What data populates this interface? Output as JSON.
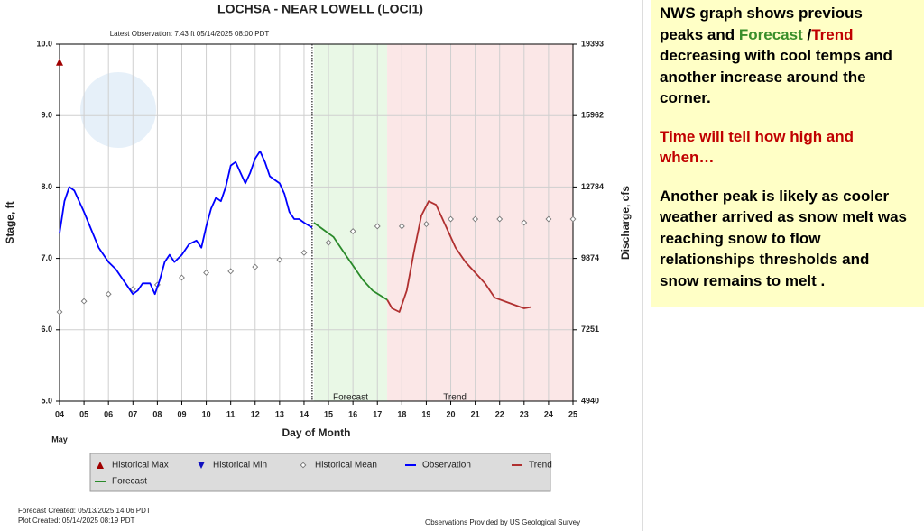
{
  "chart_data": {
    "type": "line",
    "title": "LOCHSA - NEAR LOWELL  (LOCI1)",
    "subtitle": "Latest Observation: 7.43 ft 05/14/2025 08:00 PDT",
    "x_label": "Day of Month",
    "x_sublabel": "May",
    "y_label": "Stage, ft",
    "y2_label": "Discharge, cfs",
    "xlim": [
      4,
      25
    ],
    "xticks": [
      {
        "value": 4,
        "label": "04"
      },
      {
        "value": 5,
        "label": "05"
      },
      {
        "value": 6,
        "label": "06"
      },
      {
        "value": 7,
        "label": "07"
      },
      {
        "value": 8,
        "label": "08"
      },
      {
        "value": 9,
        "label": "09"
      },
      10,
      11,
      12,
      13,
      14,
      15,
      16,
      17,
      18,
      19,
      20,
      21,
      22,
      23,
      24,
      25
    ],
    "ylim": [
      5,
      10
    ],
    "yticks": [
      {
        "value": 5,
        "label": "5.0"
      },
      {
        "value": 6,
        "label": "6.0"
      },
      {
        "value": 7,
        "label": "7.0"
      },
      {
        "value": 8,
        "label": "8.0"
      },
      {
        "value": 9,
        "label": "9.0"
      },
      {
        "value": 10,
        "label": "10.0"
      }
    ],
    "y2lim": [
      4940,
      19393
    ],
    "y2ticks": [
      4940,
      7251,
      9874,
      12784,
      15962,
      19393
    ],
    "grid": true,
    "series": [
      {
        "name": "Historical Max",
        "color": "#a00000",
        "marker": "triangle-up",
        "x": [
          4
        ],
        "values": [
          9.75
        ]
      },
      {
        "name": "Historical Min",
        "color": "#1010c0",
        "marker": "triangle-down",
        "x": [],
        "values": []
      },
      {
        "name": "Historical Mean",
        "color": "#777777",
        "marker": "diamond",
        "x": [
          4,
          5,
          6,
          7,
          8,
          9,
          10,
          11,
          12,
          13,
          14,
          15,
          16,
          17,
          18,
          19,
          20,
          21,
          22,
          23,
          24,
          25
        ],
        "values": [
          6.25,
          6.4,
          6.5,
          6.57,
          6.63,
          6.73,
          6.8,
          6.82,
          6.88,
          6.98,
          7.08,
          7.22,
          7.38,
          7.45,
          7.45,
          7.48,
          7.55,
          7.55,
          7.55,
          7.5,
          7.55,
          7.55
        ]
      },
      {
        "name": "Observation",
        "color": "#0000ff",
        "marker": "line",
        "x": [
          4.0,
          4.2,
          4.4,
          4.6,
          4.8,
          5.0,
          5.3,
          5.6,
          6.0,
          6.3,
          6.6,
          6.8,
          7.0,
          7.2,
          7.4,
          7.7,
          7.9,
          8.1,
          8.3,
          8.5,
          8.7,
          9.0,
          9.3,
          9.6,
          9.8,
          10.0,
          10.2,
          10.4,
          10.6,
          10.8,
          11.0,
          11.2,
          11.4,
          11.6,
          11.8,
          12.0,
          12.2,
          12.4,
          12.6,
          12.8,
          13.0,
          13.2,
          13.4,
          13.6,
          13.8,
          14.0,
          14.33
        ],
        "values": [
          7.35,
          7.8,
          8.0,
          7.95,
          7.8,
          7.65,
          7.4,
          7.15,
          6.95,
          6.85,
          6.7,
          6.6,
          6.5,
          6.55,
          6.65,
          6.65,
          6.5,
          6.7,
          6.95,
          7.05,
          6.95,
          7.05,
          7.2,
          7.25,
          7.15,
          7.45,
          7.7,
          7.85,
          7.8,
          8.0,
          8.3,
          8.35,
          8.2,
          8.05,
          8.2,
          8.4,
          8.5,
          8.35,
          8.15,
          8.1,
          8.05,
          7.9,
          7.65,
          7.55,
          7.55,
          7.5,
          7.43
        ]
      },
      {
        "name": "Trend",
        "color": "#b03030",
        "marker": "line",
        "x": [
          17.4,
          17.6,
          17.9,
          18.2,
          18.5,
          18.8,
          19.1,
          19.4,
          19.8,
          20.2,
          20.6,
          21.0,
          21.4,
          21.8,
          22.2,
          22.6,
          23.0,
          23.3
        ],
        "values": [
          6.42,
          6.3,
          6.25,
          6.55,
          7.1,
          7.6,
          7.8,
          7.75,
          7.45,
          7.15,
          6.95,
          6.8,
          6.65,
          6.45,
          6.4,
          6.35,
          6.3,
          6.32
        ]
      },
      {
        "name": "Forecast",
        "color": "#2a8a2a",
        "marker": "line",
        "x": [
          14.4,
          14.8,
          15.2,
          15.6,
          16.0,
          16.4,
          16.8,
          17.4
        ],
        "values": [
          7.5,
          7.4,
          7.3,
          7.1,
          6.9,
          6.7,
          6.55,
          6.42
        ]
      }
    ],
    "footer": {
      "forecast_created": "Forecast Created: 05/13/2025 14:06 PDT",
      "plot_created": "Plot Created: 05/14/2025 08:19 PDT",
      "source": "Observations Provided by US Geological Survey"
    }
  },
  "annotation": {
    "paragraphs": [
      [
        [
          {
            "text": "NWS graph shows previous"
          }
        ],
        [
          {
            "text": "peaks and "
          },
          {
            "text": "Forecast",
            "color": "#3a8f2a"
          },
          {
            "text": " /"
          },
          {
            "text": "Trend",
            "color": "#c00000"
          }
        ],
        [
          {
            "text": "decreasing with cool temps and"
          }
        ],
        [
          {
            "text": "another increase around the"
          }
        ],
        [
          {
            "text": "corner."
          }
        ]
      ],
      [
        [
          {
            "text": "Time will tell how high and",
            "color": "#c00000"
          }
        ],
        [
          {
            "text": "when…",
            "color": "#c00000"
          }
        ]
      ],
      [
        [
          {
            "text": "Another peak is likely as cooler"
          }
        ],
        [
          {
            "text": "weather arrived as snow melt was"
          }
        ],
        [
          {
            "text": "reaching snow to flow"
          }
        ],
        [
          {
            "text": "relationships thresholds and"
          }
        ],
        [
          {
            "text": "snow remains to melt ."
          }
        ]
      ]
    ]
  }
}
